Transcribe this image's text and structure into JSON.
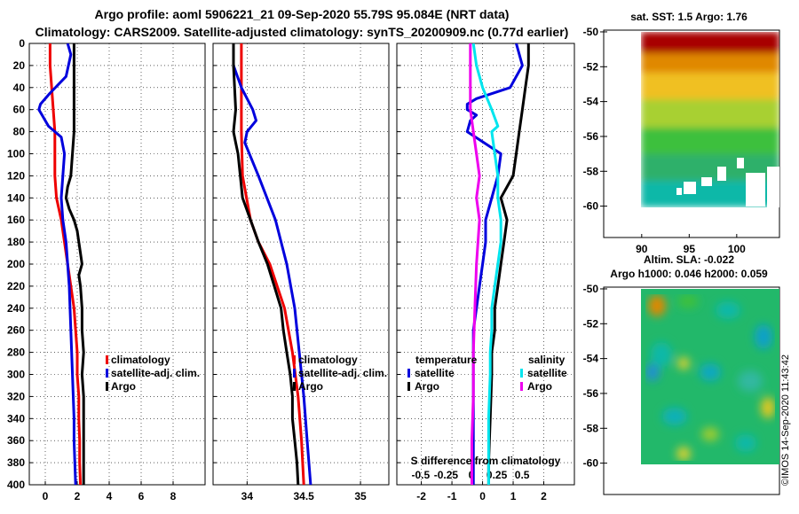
{
  "figure": {
    "title_line1": "Argo profile: aoml 5906221_21 09-Sep-2020 55.79S 95.084E (NRT data)",
    "title_line2": "Climatology: CARS2009. Satellite-adjusted climatology: synTS_20200909.nc (0.77d earlier)",
    "stamp": "©IMOS 14-Sep-2020 11:43:42"
  },
  "colors": {
    "climatology": "#ee0000",
    "satellite_adj": "#0000dd",
    "argo": "#000000",
    "satellite_sal": "#00e5ee",
    "argo_sal": "#ee00ee",
    "grid": "#000000"
  },
  "chart_data": [
    {
      "id": "temperature",
      "type": "line",
      "xlabel": "",
      "ylabel": "",
      "xlim": [
        -1,
        10
      ],
      "ylim": [
        400,
        0
      ],
      "xticks": [
        "0",
        "2",
        "4",
        "6",
        "8"
      ],
      "xtick_values": [
        0,
        2,
        4,
        6,
        8
      ],
      "yticks": [
        "0",
        "20",
        "40",
        "60",
        "80",
        "100",
        "120",
        "140",
        "160",
        "180",
        "200",
        "220",
        "240",
        "260",
        "280",
        "300",
        "320",
        "340",
        "360",
        "380",
        "400"
      ],
      "legend": [
        "climatology",
        "satellite-adj. clim.",
        "Argo"
      ],
      "series": [
        {
          "name": "climatology",
          "color_key": "climatology",
          "depth": [
            0,
            20,
            40,
            60,
            80,
            100,
            120,
            140,
            160,
            180,
            200,
            220,
            240,
            260,
            280,
            300,
            320,
            340,
            360,
            380,
            400
          ],
          "values": [
            0.3,
            0.3,
            0.4,
            0.5,
            0.6,
            0.6,
            0.6,
            0.7,
            1.0,
            1.2,
            1.4,
            1.6,
            1.8,
            1.9,
            2.0,
            2.0,
            2.1,
            2.1,
            2.15,
            2.15,
            2.2
          ]
        },
        {
          "name": "satellite-adj. clim.",
          "color_key": "satellite_adj",
          "depth": [
            0,
            10,
            30,
            45,
            55,
            60,
            65,
            75,
            85,
            100,
            120,
            140,
            160,
            180,
            200,
            220,
            240,
            260,
            280,
            300,
            320,
            340,
            360,
            380,
            400
          ],
          "values": [
            1.4,
            1.6,
            1.3,
            0.3,
            -0.3,
            -0.4,
            -0.2,
            0.2,
            1.0,
            1.2,
            1.1,
            1.0,
            1.1,
            1.3,
            1.4,
            1.5,
            1.55,
            1.6,
            1.65,
            1.7,
            1.75,
            1.8,
            1.8,
            1.85,
            1.9
          ]
        },
        {
          "name": "Argo",
          "color_key": "argo",
          "depth": [
            0,
            20,
            40,
            60,
            80,
            100,
            120,
            130,
            140,
            150,
            160,
            170,
            180,
            190,
            200,
            210,
            220,
            240,
            260,
            280,
            300,
            320,
            340,
            360,
            380,
            400
          ],
          "values": [
            1.8,
            1.8,
            1.8,
            1.8,
            1.8,
            1.7,
            1.6,
            1.4,
            1.3,
            1.5,
            1.8,
            2.0,
            2.1,
            2.2,
            2.3,
            2.1,
            2.2,
            2.3,
            2.3,
            2.4,
            2.3,
            2.4,
            2.4,
            2.4,
            2.4,
            2.4
          ]
        }
      ]
    },
    {
      "id": "salinity",
      "type": "line",
      "xlabel": "",
      "xlim": [
        33.7,
        35.25
      ],
      "ylim": [
        400,
        0
      ],
      "xticks": [
        "34",
        "34.5",
        "35"
      ],
      "xtick_values": [
        34,
        34.5,
        35
      ],
      "legend": [
        "climatology",
        "satellite-adj. clim.",
        "Argo"
      ],
      "series": [
        {
          "name": "climatology",
          "color_key": "climatology",
          "depth": [
            0,
            40,
            80,
            120,
            160,
            180,
            200,
            240,
            280,
            320,
            360,
            400
          ],
          "values": [
            33.95,
            33.95,
            33.95,
            33.96,
            34.03,
            34.1,
            34.2,
            34.33,
            34.4,
            34.45,
            34.48,
            34.5
          ]
        },
        {
          "name": "satellite-adj. clim.",
          "color_key": "satellite_adj",
          "depth": [
            0,
            20,
            40,
            60,
            70,
            80,
            90,
            120,
            160,
            200,
            240,
            280,
            320,
            360,
            400
          ],
          "values": [
            33.88,
            33.88,
            33.95,
            34.05,
            34.08,
            34.0,
            33.98,
            34.1,
            34.25,
            34.35,
            34.42,
            34.46,
            34.5,
            34.53,
            34.56
          ]
        },
        {
          "name": "Argo",
          "color_key": "argo",
          "depth": [
            0,
            20,
            60,
            80,
            90,
            100,
            140,
            160,
            180,
            200,
            220,
            240,
            260,
            280,
            300,
            320,
            340,
            360,
            380,
            400
          ],
          "values": [
            33.88,
            33.88,
            33.9,
            33.88,
            33.9,
            33.92,
            33.96,
            34.03,
            34.1,
            34.18,
            34.24,
            34.3,
            34.32,
            34.35,
            34.38,
            34.4,
            34.4,
            34.42,
            34.44,
            34.45
          ]
        }
      ]
    },
    {
      "id": "difference",
      "type": "line",
      "xlabel": "S difference from climatology",
      "xlim": [
        -2.8,
        3.0
      ],
      "ylim": [
        400,
        0
      ],
      "xticks": [
        "-2",
        "-1",
        "0",
        "1",
        "2"
      ],
      "xtick_values": [
        -2,
        -1,
        0,
        1,
        2
      ],
      "secondary_xticks": [
        "-0.5",
        "-0.25",
        "0",
        "0.25",
        "0.5"
      ],
      "secondary_xtick_values": [
        -0.5,
        -0.25,
        0,
        0.25,
        0.5
      ],
      "legend_temperature_title": "temperature",
      "legend_salinity_title": "salinity",
      "legend_satellite": "satellite",
      "legend_argo": "Argo",
      "series": [
        {
          "name": "temperature satellite",
          "color_key": "satellite_adj",
          "depth": [
            0,
            20,
            40,
            50,
            55,
            60,
            65,
            70,
            80,
            100,
            120,
            140,
            160,
            180,
            200,
            220,
            240,
            260,
            280,
            300,
            340,
            380,
            400
          ],
          "values": [
            1.1,
            1.3,
            0.9,
            -0.2,
            -0.5,
            -0.5,
            -0.2,
            -0.4,
            -0.5,
            0.6,
            0.5,
            0.3,
            0.1,
            0.1,
            0.0,
            -0.1,
            -0.2,
            -0.3,
            -0.3,
            -0.3,
            -0.3,
            -0.3,
            -0.3
          ]
        },
        {
          "name": "temperature Argo",
          "color_key": "argo",
          "depth": [
            0,
            20,
            40,
            60,
            80,
            100,
            120,
            140,
            160,
            180,
            200,
            220,
            240,
            260,
            280,
            300,
            340,
            380,
            400
          ],
          "values": [
            1.5,
            1.5,
            1.4,
            1.3,
            1.2,
            1.1,
            1.0,
            0.6,
            0.8,
            0.7,
            0.6,
            0.5,
            0.4,
            0.4,
            0.3,
            0.3,
            0.25,
            0.2,
            0.2
          ]
        },
        {
          "name": "salinity satellite",
          "color_key": "satellite_sal",
          "depth": [
            0,
            20,
            40,
            60,
            75,
            80,
            100,
            120,
            140,
            160,
            180,
            200,
            220,
            240,
            260,
            280,
            300,
            340,
            380,
            400
          ],
          "values": [
            -0.3,
            -0.2,
            0.0,
            0.3,
            0.5,
            0.3,
            0.4,
            0.5,
            0.5,
            0.6,
            0.6,
            0.5,
            0.4,
            0.3,
            0.3,
            0.25,
            0.25,
            0.2,
            0.2,
            0.2
          ]
        },
        {
          "name": "salinity Argo",
          "color_key": "argo_sal",
          "depth": [
            0,
            20,
            40,
            60,
            80,
            100,
            120,
            140,
            160,
            180,
            200,
            240,
            280,
            320,
            360,
            400
          ],
          "values": [
            -0.4,
            -0.4,
            -0.4,
            -0.4,
            -0.3,
            -0.2,
            -0.1,
            -0.2,
            -0.1,
            -0.15,
            -0.2,
            -0.25,
            -0.3,
            -0.3,
            -0.35,
            -0.35
          ]
        }
      ]
    },
    {
      "id": "sst_map",
      "type": "heatmap",
      "title": "sat. SST: 1.5 Argo: 1.76",
      "xticks": [
        "90",
        "95",
        "100"
      ],
      "xtick_values": [
        90,
        95,
        100
      ],
      "yticks": [
        "-50",
        "-52",
        "-54",
        "-56",
        "-58",
        "-60"
      ],
      "ytick_values": [
        -50,
        -52,
        -54,
        -56,
        -58,
        -60
      ],
      "xlim": [
        86,
        104.5
      ],
      "ylim": [
        -61.8,
        -49.9
      ]
    },
    {
      "id": "sla_map",
      "type": "heatmap",
      "title_line1": "Altim. SLA: -0.022",
      "title_line2": "Argo h1000: 0.046 h2000: 0.059",
      "yticks": [
        "-50",
        "-52",
        "-54",
        "-56",
        "-58",
        "-60"
      ],
      "ytick_values": [
        -50,
        -52,
        -54,
        -56,
        -58,
        -60
      ],
      "xlim": [
        86,
        104.5
      ],
      "ylim": [
        -61.8,
        -49.9
      ]
    }
  ]
}
